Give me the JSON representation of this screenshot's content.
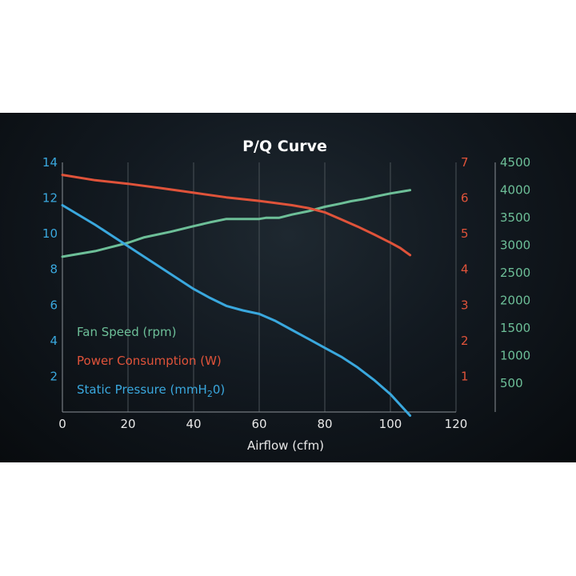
{
  "chart_data": {
    "type": "line",
    "title": "P/Q Curve",
    "xlabel": "Airflow (cfm)",
    "xlim": [
      0,
      120
    ],
    "x_ticks": [
      0,
      20,
      40,
      60,
      80,
      100,
      120
    ],
    "grid": true,
    "legend_position": "bottom-left",
    "axes": {
      "left": {
        "ylim": [
          0,
          14
        ],
        "ticks": [
          2,
          4,
          6,
          8,
          10,
          12,
          14
        ],
        "color": "#3aa8de"
      },
      "right1": {
        "ylim": [
          0,
          7
        ],
        "ticks": [
          1,
          2,
          3,
          4,
          5,
          6,
          7
        ],
        "color": "#e0533a"
      },
      "right2": {
        "ylim": [
          0,
          4500
        ],
        "ticks": [
          500,
          1000,
          1500,
          2000,
          2500,
          3000,
          3500,
          4000,
          4500
        ],
        "color": "#6dbf98"
      }
    },
    "series": [
      {
        "name": "Fan Speed (rpm)",
        "axis": "right2",
        "color": "#6dbf98",
        "x": [
          0,
          10,
          20,
          25,
          33,
          40,
          45,
          50,
          55,
          60,
          62,
          66,
          70,
          75,
          80,
          85,
          88,
          92,
          95,
          100,
          106
        ],
        "y": [
          2800,
          2900,
          3050,
          3150,
          3250,
          3350,
          3420,
          3480,
          3480,
          3480,
          3500,
          3500,
          3560,
          3620,
          3700,
          3760,
          3800,
          3840,
          3880,
          3940,
          4000
        ]
      },
      {
        "name": "Power Consumption (W)",
        "axis": "right1",
        "color": "#e0533a",
        "x": [
          0,
          10,
          20,
          30,
          40,
          50,
          60,
          70,
          75,
          80,
          85,
          90,
          95,
          100,
          103,
          106
        ],
        "y": [
          6.65,
          6.5,
          6.4,
          6.28,
          6.15,
          6.02,
          5.92,
          5.8,
          5.72,
          5.6,
          5.4,
          5.2,
          4.98,
          4.75,
          4.6,
          4.4
        ]
      },
      {
        "name": "Static Pressure (mmH20)",
        "axis": "left",
        "color": "#3aa8de",
        "x": [
          0,
          10,
          20,
          30,
          40,
          45,
          50,
          55,
          60,
          65,
          70,
          75,
          80,
          85,
          90,
          95,
          100,
          103,
          106
        ],
        "y": [
          11.6,
          10.5,
          9.3,
          8.1,
          6.9,
          6.4,
          5.95,
          5.7,
          5.5,
          5.1,
          4.6,
          4.1,
          3.6,
          3.1,
          2.5,
          1.8,
          1.0,
          0.4,
          -0.2
        ]
      }
    ]
  }
}
